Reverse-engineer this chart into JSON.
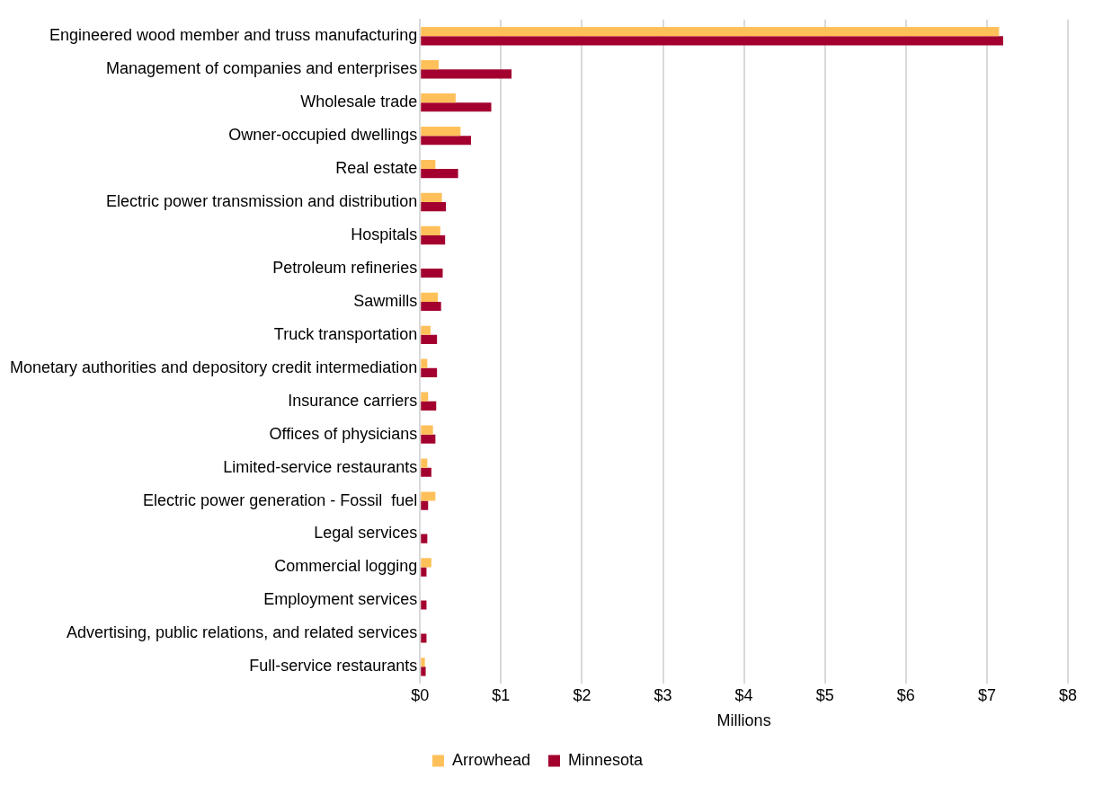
{
  "chart_data": {
    "type": "bar",
    "orientation": "horizontal",
    "xlabel": "Millions",
    "categories": [
      "Engineered wood member and truss manufacturing",
      "Management of companies and enterprises",
      "Wholesale trade",
      "Owner-occupied dwellings",
      "Real estate",
      "Electric power transmission and distribution",
      "Hospitals",
      "Petroleum refineries",
      "Sawmills",
      "Truck transportation",
      "Monetary authorities and depository credit intermediation",
      "Insurance carriers",
      "Offices of physicians",
      "Limited-service restaurants",
      "Electric power generation - Fossil  fuel",
      "Legal services",
      "Commercial logging",
      "Employment services",
      "Advertising, public relations, and related services",
      "Full-service restaurants"
    ],
    "series": [
      {
        "name": "Arrowhead",
        "color": "#ffc05a",
        "values": [
          7.15,
          0.23,
          0.44,
          0.5,
          0.19,
          0.27,
          0.25,
          0,
          0.22,
          0.13,
          0.09,
          0.1,
          0.16,
          0.09,
          0.19,
          null,
          0.14,
          null,
          null,
          0.06
        ]
      },
      {
        "name": "Minnesota",
        "color": "#a3002f",
        "values": [
          7.2,
          1.13,
          0.88,
          0.63,
          0.47,
          0.32,
          0.31,
          0.28,
          0.26,
          0.21,
          0.21,
          0.2,
          0.19,
          0.14,
          0.1,
          0.09,
          0.08,
          0.08,
          0.08,
          0.07
        ]
      }
    ],
    "xlim": [
      0,
      8
    ],
    "xticks": [
      {
        "value": 0,
        "label": "$0"
      },
      {
        "value": 1,
        "label": "$1"
      },
      {
        "value": 2,
        "label": "$2"
      },
      {
        "value": 3,
        "label": "$3"
      },
      {
        "value": 4,
        "label": "$4"
      },
      {
        "value": 5,
        "label": "$5"
      },
      {
        "value": 6,
        "label": "$6"
      },
      {
        "value": 7,
        "label": "$7"
      },
      {
        "value": 8,
        "label": "$8"
      }
    ],
    "grid": "x",
    "legend": "bottom"
  }
}
